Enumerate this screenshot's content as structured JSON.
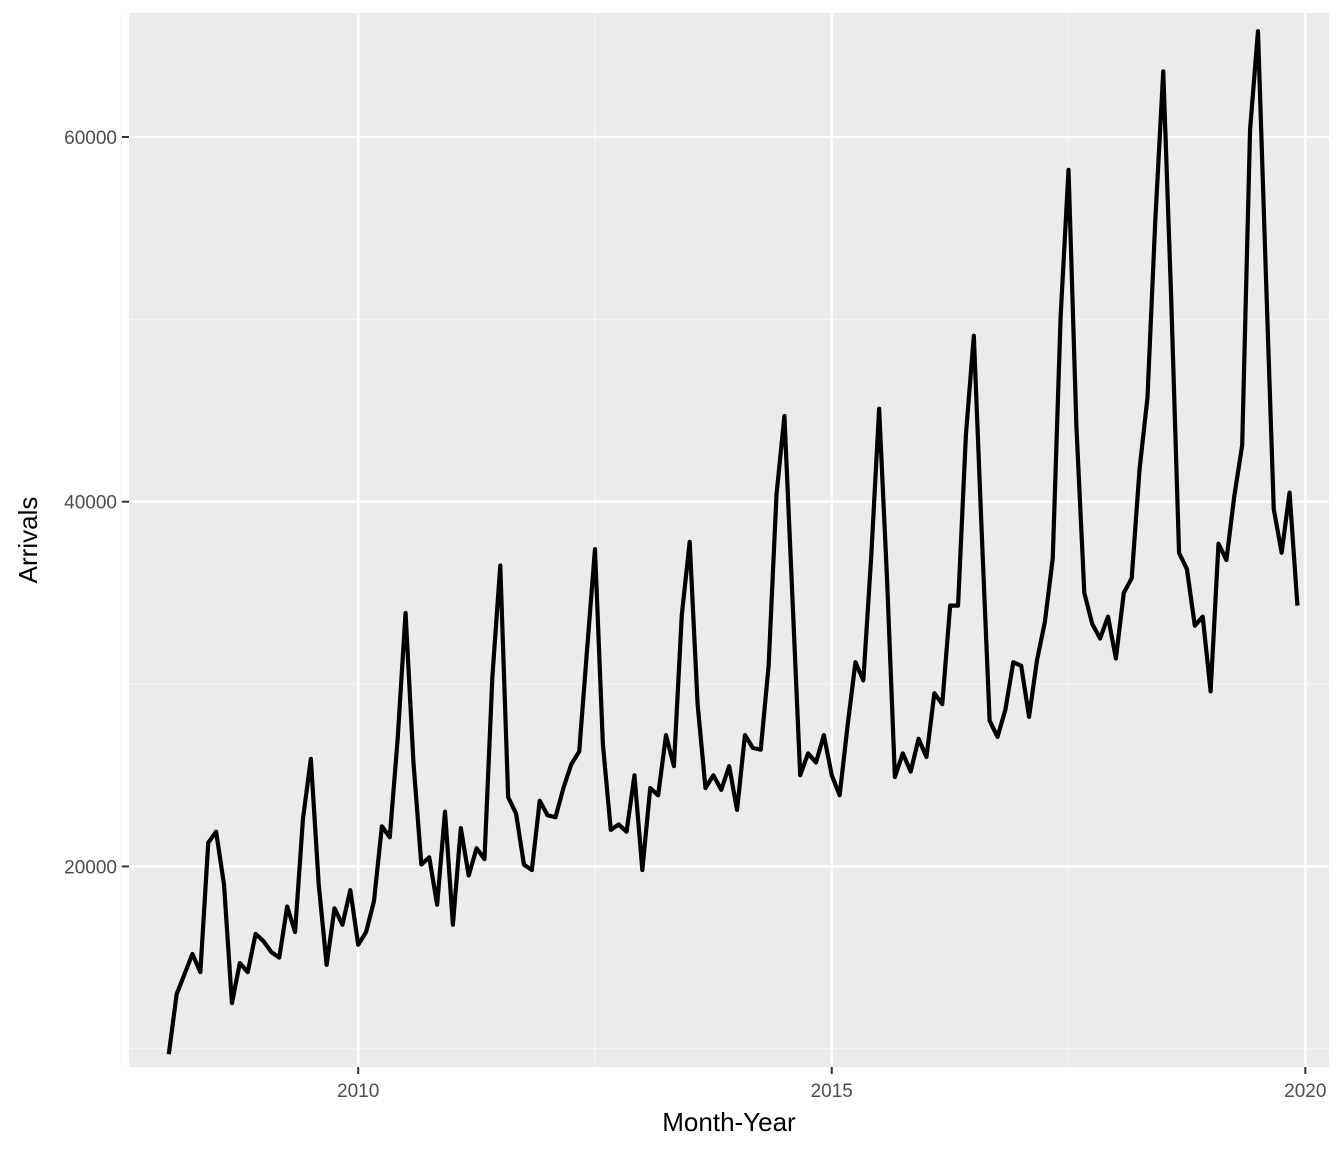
{
  "chart_data": {
    "type": "line",
    "title": "",
    "xlabel": "Month-Year",
    "ylabel": "Arrivals",
    "x_start": "2008-01",
    "x_frequency": "monthly",
    "xlim": [
      2007.58,
      2020.25
    ],
    "ylim": [
      9000,
      66800
    ],
    "x_ticks": [
      {
        "value": 2010,
        "label": "2010"
      },
      {
        "value": 2015,
        "label": "2015"
      },
      {
        "value": 2020,
        "label": "2020"
      }
    ],
    "x_minor_ticks": [
      2007.5,
      2012.5,
      2017.5
    ],
    "y_ticks": [
      {
        "value": 20000,
        "label": "20000"
      },
      {
        "value": 40000,
        "label": "40000"
      },
      {
        "value": 60000,
        "label": "60000"
      }
    ],
    "y_minor_ticks": [
      10000,
      30000,
      50000
    ],
    "grid": true,
    "legend": "none",
    "series": [
      {
        "values": [
          9700,
          13000,
          14100,
          15200,
          14200,
          21300,
          21900,
          19000,
          12500,
          14700,
          14200,
          16300,
          15900,
          15300,
          15000,
          17800,
          16400,
          22600,
          25900,
          19000,
          14600,
          17700,
          16800,
          18700,
          15700,
          16400,
          18100,
          22200,
          21600,
          27000,
          33900,
          25700,
          20100,
          20500,
          17900,
          23000,
          16800,
          22100,
          19500,
          21000,
          20400,
          30400,
          36500,
          23800,
          22900,
          20100,
          19800,
          23600,
          22800,
          22700,
          24300,
          25600,
          26300,
          31900,
          37400,
          26700,
          22000,
          22300,
          21900,
          25000,
          19800,
          24300,
          23900,
          27200,
          25500,
          33800,
          37800,
          28900,
          24300,
          25000,
          24200,
          25500,
          23100,
          27200,
          26500,
          26400,
          31000,
          40400,
          44700,
          34900,
          25000,
          26200,
          25700,
          27200,
          25000,
          23900,
          27700,
          31200,
          30200,
          37000,
          45100,
          35800,
          24900,
          26200,
          25200,
          27000,
          26000,
          29500,
          28900,
          34300,
          34300,
          43700,
          49100,
          38300,
          28000,
          27100,
          28600,
          31200,
          31000,
          28200,
          31300,
          33400,
          36900,
          50200,
          58200,
          44100,
          35000,
          33300,
          32500,
          33700,
          31400,
          35000,
          35800,
          41800,
          45700,
          55500,
          63600,
          51200,
          37200,
          36300,
          33200,
          33700,
          29600,
          37700,
          36800,
          40300,
          43100,
          60400,
          65800,
          52500,
          39600,
          37200,
          40500,
          34300
        ]
      }
    ],
    "colors": {
      "panel_background": "#ebebeb",
      "grid_major": "#ffffff",
      "grid_minor": "#f5f5f5",
      "line": "#000000",
      "tick_label": "#4d4d4d",
      "axis_title": "#000000"
    }
  }
}
